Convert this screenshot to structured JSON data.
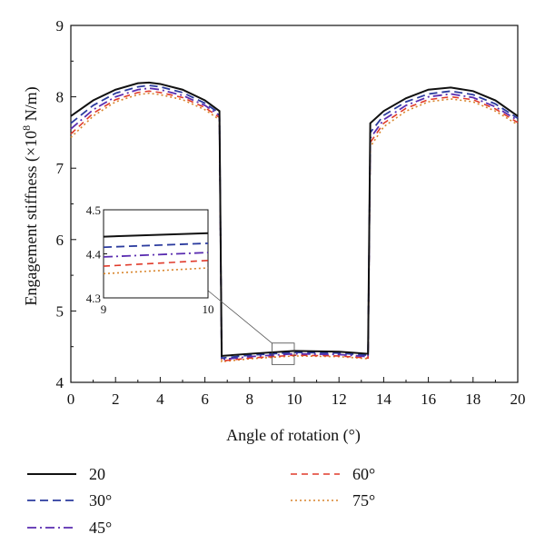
{
  "chart_data": {
    "type": "line",
    "title": "",
    "xlabel": "Angle of rotation (°)",
    "ylabel_main": "Engagement stiffness (×10",
    "ylabel_exp": "8",
    "ylabel_unit": " N/m)",
    "xlim": [
      0,
      20
    ],
    "ylim": [
      4,
      9
    ],
    "xticks": [
      "0",
      "2",
      "4",
      "6",
      "8",
      "10",
      "12",
      "14",
      "16",
      "18",
      "20"
    ],
    "yticks": [
      "4",
      "5",
      "6",
      "7",
      "8",
      "9"
    ],
    "grid": false,
    "legend_position": "bottom",
    "series": [
      {
        "name": "20",
        "color": "#111111",
        "dash": "",
        "width": 2.0,
        "seg1": {
          "x": [
            0,
            1,
            2,
            3,
            3.5,
            4,
            5,
            6,
            6.65
          ],
          "y": [
            7.73,
            7.95,
            8.1,
            8.19,
            8.2,
            8.18,
            8.1,
            7.95,
            7.8
          ]
        },
        "seg2": {
          "x": [
            6.75,
            8,
            10,
            12,
            13.3
          ],
          "y": [
            4.37,
            4.4,
            4.44,
            4.43,
            4.4
          ]
        },
        "seg3": {
          "x": [
            13.4,
            14,
            15,
            16,
            17,
            18,
            19,
            20
          ],
          "y": [
            7.63,
            7.8,
            7.98,
            8.1,
            8.13,
            8.08,
            7.95,
            7.73
          ]
        },
        "inset": {
          "x": [
            9,
            10
          ],
          "y": [
            4.439,
            4.447
          ]
        }
      },
      {
        "name": "30°",
        "color": "#2b3b9e",
        "dash": "9,5",
        "width": 1.8,
        "seg1": {
          "x": [
            0,
            1,
            2,
            3,
            3.5,
            4,
            5,
            6,
            6.65
          ],
          "y": [
            7.63,
            7.88,
            8.05,
            8.14,
            8.16,
            8.14,
            8.06,
            7.91,
            7.77
          ]
        },
        "seg2": {
          "x": [
            6.75,
            8,
            10,
            12,
            13.3
          ],
          "y": [
            4.34,
            4.38,
            4.42,
            4.41,
            4.38
          ]
        },
        "seg3": {
          "x": [
            13.4,
            14,
            15,
            16,
            17,
            18,
            19,
            20
          ],
          "y": [
            7.5,
            7.74,
            7.93,
            8.04,
            8.08,
            8.03,
            7.9,
            7.7
          ]
        },
        "inset": {
          "x": [
            9,
            10
          ],
          "y": [
            4.415,
            4.424
          ]
        }
      },
      {
        "name": "45°",
        "color": "#5a2db0",
        "dash": "10,4,2,4",
        "width": 1.8,
        "seg1": {
          "x": [
            0,
            1,
            2,
            3,
            3.5,
            4,
            5,
            6,
            6.65
          ],
          "y": [
            7.55,
            7.82,
            8.0,
            8.1,
            8.12,
            8.1,
            8.02,
            7.88,
            7.74
          ]
        },
        "seg2": {
          "x": [
            6.75,
            8,
            10,
            12,
            13.3
          ],
          "y": [
            4.32,
            4.36,
            4.4,
            4.39,
            4.36
          ]
        },
        "seg3": {
          "x": [
            13.4,
            14,
            15,
            16,
            17,
            18,
            19,
            20
          ],
          "y": [
            7.42,
            7.68,
            7.88,
            8.0,
            8.04,
            7.99,
            7.86,
            7.67
          ]
        },
        "inset": {
          "x": [
            9,
            10
          ],
          "y": [
            4.393,
            4.403
          ]
        }
      },
      {
        "name": "60°",
        "color": "#e03a2a",
        "dash": "7,5",
        "width": 1.6,
        "seg1": {
          "x": [
            0,
            1,
            2,
            3,
            3.5,
            4,
            5,
            6,
            6.65
          ],
          "y": [
            7.48,
            7.77,
            7.96,
            8.06,
            8.08,
            8.06,
            7.99,
            7.85,
            7.71
          ]
        },
        "seg2": {
          "x": [
            6.75,
            8,
            10,
            12,
            13.3
          ],
          "y": [
            4.3,
            4.34,
            4.38,
            4.37,
            4.34
          ]
        },
        "seg3": {
          "x": [
            13.4,
            14,
            15,
            16,
            17,
            18,
            19,
            20
          ],
          "y": [
            7.36,
            7.63,
            7.84,
            7.96,
            8.0,
            7.96,
            7.83,
            7.64
          ]
        },
        "inset": {
          "x": [
            9,
            10
          ],
          "y": [
            4.372,
            4.385
          ]
        }
      },
      {
        "name": "75°",
        "color": "#d8842a",
        "dash": "2,3",
        "width": 1.6,
        "seg1": {
          "x": [
            0,
            1,
            2,
            3,
            3.5,
            4,
            5,
            6,
            6.65
          ],
          "y": [
            7.43,
            7.73,
            7.93,
            8.03,
            8.05,
            8.03,
            7.96,
            7.82,
            7.68
          ]
        },
        "seg2": {
          "x": [
            6.75,
            8,
            10,
            12,
            13.3
          ],
          "y": [
            4.29,
            4.33,
            4.37,
            4.36,
            4.33
          ]
        },
        "seg3": {
          "x": [
            13.4,
            14,
            15,
            16,
            17,
            18,
            19,
            20
          ],
          "y": [
            7.3,
            7.58,
            7.8,
            7.93,
            7.97,
            7.93,
            7.8,
            7.61
          ]
        },
        "inset": {
          "x": [
            9,
            10
          ],
          "y": [
            4.355,
            4.368
          ]
        }
      }
    ],
    "inset": {
      "xlim": [
        9,
        10
      ],
      "ylim": [
        4.3,
        4.5
      ],
      "xticks": [
        "9",
        "10"
      ],
      "yticks": [
        "4.3",
        "4.4",
        "4.5"
      ],
      "zoom_region": {
        "x": [
          9,
          10
        ],
        "y": [
          4.25,
          4.55
        ]
      }
    }
  }
}
